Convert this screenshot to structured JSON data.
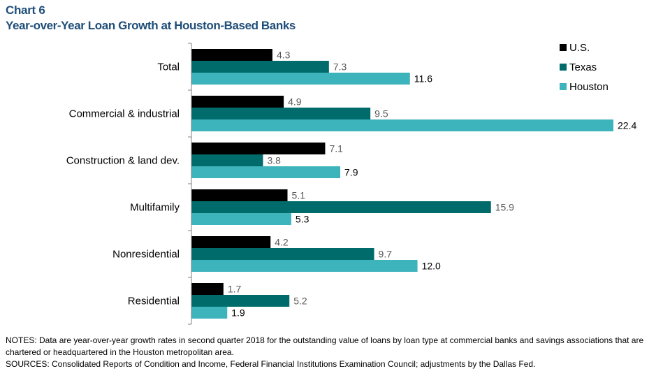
{
  "header": {
    "chart_number": "Chart 6",
    "title": "Year-over-Year Loan Growth at Houston-Based Banks"
  },
  "colors": {
    "us": "#000000",
    "texas": "#006b6b",
    "houston": "#3db3bc",
    "title": "#1f4e79",
    "value_label": "#595959"
  },
  "chart_data": {
    "type": "bar",
    "orientation": "horizontal",
    "categories": [
      "Total",
      "Commercial & industrial",
      "Construction & land dev.",
      "Multifamily",
      "Nonresidential",
      "Residential"
    ],
    "series": [
      {
        "name": "U.S.",
        "values": [
          4.3,
          4.9,
          7.1,
          5.1,
          4.2,
          1.7
        ],
        "value_labels": [
          "4.3",
          "4.9",
          "7.1",
          "5.1",
          "4.2",
          "1.7"
        ]
      },
      {
        "name": "Texas",
        "values": [
          7.3,
          9.5,
          3.8,
          15.9,
          9.7,
          5.2
        ],
        "value_labels": [
          "7.3",
          "9.5",
          "3.8",
          "15.9",
          "9.7",
          "5.2"
        ]
      },
      {
        "name": "Houston",
        "values": [
          11.6,
          22.4,
          7.9,
          5.3,
          12.0,
          1.9
        ],
        "value_labels": [
          "11.6",
          "22.4",
          "7.9",
          "5.3",
          "12.0",
          "1.9"
        ]
      }
    ],
    "xlim": [
      0,
      22.4
    ],
    "grid": false,
    "legend_position": "top-right"
  },
  "footer": {
    "notes": "NOTES: Data are year-over-year growth rates in second quarter 2018  for the outstanding value of loans by loan type at commercial banks and savings associations that are chartered or headquartered in the Houston metropolitan area.",
    "sources": "SOURCES: Consolidated Reports of Condition and Income, Federal Financial Institutions Examination Council; adjustments by the Dallas Fed."
  }
}
